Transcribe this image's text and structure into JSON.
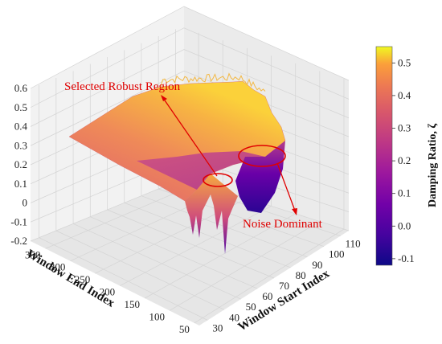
{
  "chart_data": {
    "type": "surface3d",
    "title": "",
    "xlabel": "Window Start Index",
    "ylabel": "Window End Index",
    "zlabel": "",
    "x_ticks": [
      "30",
      "40",
      "50",
      "60",
      "70",
      "80",
      "90",
      "100",
      "110"
    ],
    "y_ticks": [
      "50",
      "100",
      "150",
      "200",
      "250",
      "300",
      "350"
    ],
    "z_ticks": [
      "-0.2",
      "-0.1",
      "0",
      "0.1",
      "0.2",
      "0.3",
      "0.4",
      "0.5",
      "0.6"
    ],
    "xlim": [
      25,
      115
    ],
    "ylim": [
      40,
      380
    ],
    "zlim": [
      -0.2,
      0.6
    ],
    "grid": true,
    "colormap": "plasma",
    "colorbar": {
      "label": "Damping Ratio, ζ",
      "ticks": [
        "0.5",
        "0.4",
        "0.3",
        "0.2",
        "0.1",
        "0.0",
        "-0.1"
      ],
      "range": [
        -0.12,
        0.55
      ]
    },
    "annotations": [
      {
        "text": "Selected Robust Region",
        "color": "#e00000"
      },
      {
        "text": "Noise Dominant",
        "color": "#e00000"
      }
    ]
  }
}
